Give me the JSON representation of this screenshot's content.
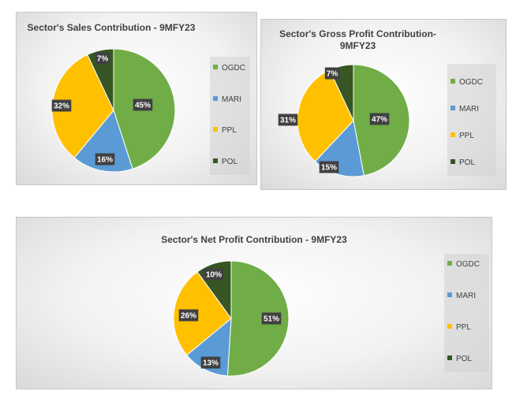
{
  "chart_data": [
    {
      "type": "pie",
      "title": "Sector's Sales Contribution - 9MFY23",
      "categories": [
        "OGDC",
        "MARI",
        "PPL",
        "POL"
      ],
      "values": [
        45,
        16,
        32,
        7
      ],
      "data_labels": [
        "45%",
        "16%",
        "32%",
        "7%"
      ],
      "colors": [
        "#70AD47",
        "#5B9BD5",
        "#FFC000",
        "#375623"
      ],
      "legend": "right"
    },
    {
      "type": "pie",
      "title": "Sector's Gross Profit Contribution-\n9MFY23",
      "categories": [
        "OGDC",
        "MARI",
        "PPL",
        "POL"
      ],
      "values": [
        47,
        15,
        31,
        7
      ],
      "data_labels": [
        "47%",
        "15%",
        "31%",
        "7%"
      ],
      "colors": [
        "#70AD47",
        "#5B9BD5",
        "#FFC000",
        "#375623"
      ],
      "legend": "right"
    },
    {
      "type": "pie",
      "title": "Sector's Net Profit Contribution - 9MFY23",
      "categories": [
        "OGDC",
        "MARI",
        "PPL",
        "POL"
      ],
      "values": [
        51,
        13,
        26,
        10
      ],
      "data_labels": [
        "51%",
        "13%",
        "26%",
        "10%"
      ],
      "colors": [
        "#70AD47",
        "#5B9BD5",
        "#FFC000",
        "#375623"
      ],
      "legend": "right"
    }
  ]
}
